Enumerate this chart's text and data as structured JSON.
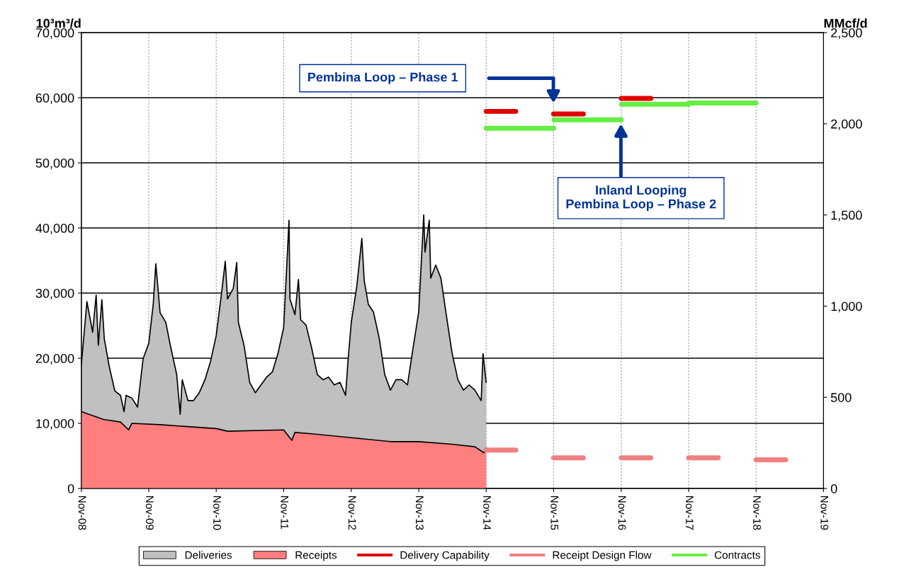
{
  "chart_data": {
    "type": "area",
    "ylabel": "10³m³/d",
    "y2label": "MMcf/d",
    "xlim": [
      "2008-11",
      "2019-11"
    ],
    "xticks": [
      {
        "value": "2008-11",
        "label": "Nov-08"
      },
      {
        "value": "2009-11",
        "label": "Nov-09"
      },
      {
        "value": "2010-11",
        "label": "Nov-10"
      },
      {
        "value": "2011-11",
        "label": "Nov-11"
      },
      {
        "value": "2012-11",
        "label": "Nov-12"
      },
      {
        "value": "2013-11",
        "label": "Nov-13"
      },
      {
        "value": "2014-11",
        "label": "Nov-14"
      },
      {
        "value": "2015-11",
        "label": "Nov-15"
      },
      {
        "value": "2016-11",
        "label": "Nov-16"
      },
      {
        "value": "2017-11",
        "label": "Nov-17"
      },
      {
        "value": "2018-11",
        "label": "Nov-18"
      },
      {
        "value": "2019-11",
        "label": "Nov-19"
      }
    ],
    "ylim": [
      0,
      70000
    ],
    "yticks": [
      0,
      {
        "value": 10000,
        "label": "10,000"
      },
      {
        "value": 20000,
        "label": "20,000"
      },
      {
        "value": 30000,
        "label": "30,000"
      },
      {
        "value": 40000,
        "label": "40,000"
      },
      {
        "value": 50000,
        "label": "50,000"
      },
      {
        "value": 60000,
        "label": "60,000"
      },
      {
        "value": 70000,
        "label": "70,000"
      }
    ],
    "y2lim": [
      0,
      2500
    ],
    "y2ticks": [
      0,
      500,
      {
        "value": 1000,
        "label": "1,000"
      },
      {
        "value": 1500,
        "label": "1,500"
      },
      {
        "value": 2000,
        "label": "2,000"
      },
      {
        "value": 2500,
        "label": "2,500"
      }
    ],
    "grid": true,
    "legend": "bottom",
    "marker": "none",
    "line_style": "solid",
    "series": [
      {
        "name": "Deliveries",
        "color": "#c0c0c0",
        "x": [
          "2008-11-01",
          "2008-12-01",
          "2009-01-01",
          "2009-01-20",
          "2009-02-01",
          "2009-02-20",
          "2009-03-05",
          "2009-04-01",
          "2009-05-01",
          "2009-06-01",
          "2009-06-20",
          "2009-07-01",
          "2009-08-01",
          "2009-09-01",
          "2009-10-01",
          "2009-11-01",
          "2009-11-25",
          "2009-12-09",
          "2010-01-01",
          "2010-02-01",
          "2010-03-01",
          "2010-04-01",
          "2010-04-20",
          "2010-05-01",
          "2010-06-01",
          "2010-07-01",
          "2010-08-01",
          "2010-09-01",
          "2010-10-01",
          "2010-11-01",
          "2010-12-01",
          "2010-12-20",
          "2011-01-01",
          "2011-02-01",
          "2011-02-20",
          "2011-03-01",
          "2011-04-01",
          "2011-05-01",
          "2011-06-01",
          "2011-07-01",
          "2011-08-01",
          "2011-09-01",
          "2011-10-01",
          "2011-11-01",
          "2011-11-30",
          "2011-12-05",
          "2012-01-01",
          "2012-01-20",
          "2012-02-01",
          "2012-03-01",
          "2012-04-01",
          "2012-05-01",
          "2012-06-01",
          "2012-07-01",
          "2012-08-01",
          "2012-09-01",
          "2012-10-01",
          "2012-10-15",
          "2012-11-01",
          "2012-12-01",
          "2012-12-28",
          "2013-01-10",
          "2013-02-01",
          "2013-03-01",
          "2013-04-01",
          "2013-05-01",
          "2013-06-01",
          "2013-07-01",
          "2013-08-01",
          "2013-09-01",
          "2013-10-01",
          "2013-11-01",
          "2013-11-28",
          "2013-12-05",
          "2013-12-28",
          "2014-01-05",
          "2014-02-01",
          "2014-03-01",
          "2014-04-01",
          "2014-05-01",
          "2014-06-01",
          "2014-07-01",
          "2014-08-01",
          "2014-09-01",
          "2014-10-05",
          "2014-10-15",
          "2014-11-01"
        ],
        "values": [
          19000,
          28700,
          24000,
          29700,
          22000,
          29000,
          23000,
          18700,
          15000,
          14300,
          11800,
          14300,
          13900,
          12500,
          19900,
          22300,
          28300,
          34500,
          27000,
          25500,
          21500,
          17500,
          11400,
          16700,
          13500,
          13500,
          14700,
          16700,
          19500,
          23500,
          30300,
          34900,
          29100,
          30700,
          34700,
          25500,
          21900,
          16300,
          14700,
          15900,
          17100,
          17900,
          20700,
          24700,
          41200,
          29100,
          26700,
          32100,
          25900,
          25100,
          21500,
          17500,
          16700,
          17100,
          15900,
          16300,
          14300,
          19900,
          25500,
          31100,
          38400,
          31900,
          28300,
          27100,
          23100,
          17500,
          15100,
          16700,
          16700,
          15900,
          21500,
          27100,
          42000,
          36300,
          41200,
          32300,
          34300,
          32300,
          26300,
          20700,
          16700,
          15100,
          15900,
          15100,
          13500,
          20700,
          16300
        ]
      },
      {
        "name": "Receipts",
        "color": "#ff7f7f",
        "x": [
          "2008-11-01",
          "2009-03-01",
          "2009-06-01",
          "2009-07-15",
          "2009-08-01",
          "2010-01-01",
          "2010-11-01",
          "2011-01-01",
          "2011-11-01",
          "2011-12-15",
          "2012-01-01",
          "2012-04-01",
          "2012-11-01",
          "2013-06-01",
          "2013-11-01",
          "2014-05-01",
          "2014-09-01",
          "2014-10-20",
          "2014-11-01"
        ],
        "values": [
          11800,
          10600,
          10200,
          9000,
          10000,
          9800,
          9200,
          8800,
          9000,
          7400,
          8600,
          8400,
          7800,
          7200,
          7200,
          6800,
          6400,
          5500,
          6200
        ]
      },
      {
        "name": "Delivery Capability",
        "type": "line",
        "color": "#e00000",
        "x": [
          "2014-11-01",
          "2015-04-10",
          "2015-06-01",
          "2015-11-01",
          "2016-04-10",
          "2016-06-01",
          "2016-11-01",
          "2017-04-10"
        ],
        "values": [
          57900,
          57900,
          null,
          57500,
          57500,
          null,
          59900,
          59900
        ]
      },
      {
        "name": "Receipt Design Flow",
        "type": "line",
        "color": "#f08080",
        "x": [
          "2014-11-01",
          "2015-04-10",
          "2015-06-01",
          "2015-11-01",
          "2016-04-10",
          "2016-06-01",
          "2016-11-01",
          "2017-04-10",
          "2017-06-01",
          "2017-11-01",
          "2018-04-10",
          "2018-06-01",
          "2018-11-01",
          "2019-04-10"
        ],
        "values": [
          5900,
          5900,
          null,
          4700,
          4700,
          null,
          4700,
          4700,
          null,
          4700,
          4700,
          null,
          4400,
          4400
        ]
      },
      {
        "name": "Contracts",
        "type": "line",
        "color": "#66ee44",
        "x": [
          "2014-11-01",
          "2015-11-01",
          "2015-11-02",
          "2015-11-03",
          "2016-11-01",
          "2016-11-02",
          "2016-11-03",
          "2017-11-01",
          "2017-11-02",
          "2017-11-03",
          "2018-11-01"
        ],
        "values": [
          55300,
          55300,
          null,
          56600,
          56600,
          null,
          59000,
          59000,
          null,
          59200,
          59200
        ]
      }
    ],
    "annotations": [
      "Pembina Loop – Phase 1",
      "Inland Looping\nPembina Loop – Phase 2"
    ]
  }
}
